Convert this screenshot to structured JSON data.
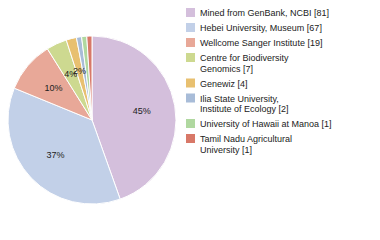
{
  "chart_data": {
    "type": "pie",
    "categories": [
      "Mined from GenBank, NCBI [81]",
      "Hebei University, Museum [67]",
      "Wellcome Sanger Institute [19]",
      "Centre for Biodiversity\nGenomics [7]",
      "Genewiz [4]",
      "Ilia State University,\nInstitute of Ecology [2]",
      "University of Hawaii at Manoa [1]",
      "Tamil Nadu Agricultural\nUniversity [1]"
    ],
    "values": [
      45,
      37,
      10,
      4,
      2,
      1,
      1,
      1
    ],
    "value_labels": [
      "45%",
      "37%",
      "10%",
      "4%",
      "2%",
      null,
      null,
      null
    ],
    "data_labels": true,
    "colors": [
      "#d4bfdc",
      "#c2d0e8",
      "#e8a898",
      "#cdd990",
      "#e8c070",
      "#a8bcd8",
      "#b0d8a0",
      "#d87868"
    ],
    "legend": "right"
  }
}
